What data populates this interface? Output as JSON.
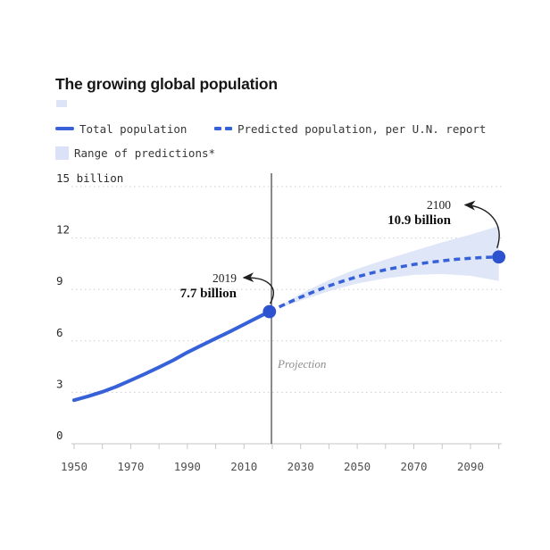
{
  "title": "The growing global population",
  "legend": {
    "total": "Total population",
    "predicted": "Predicted population, per U.N. report",
    "range": "Range of predictions*"
  },
  "colors": {
    "line": "#3761d8",
    "dot": "#2d52cf",
    "band": "#dce3f7",
    "grid": "#cdcdcd",
    "axis": "#c6c6c6",
    "projection_line": "#3c3c3c",
    "arrow": "#1f1f1f"
  },
  "chart_data": {
    "type": "line",
    "title": "The growing global population",
    "xlabel": "",
    "ylabel": "",
    "xlim": [
      1950,
      2100
    ],
    "ylim": [
      0,
      15
    ],
    "grid": "horizontal-dotted",
    "legend_position": "top",
    "y_tick_values": [
      0,
      3,
      6,
      9,
      12,
      15
    ],
    "y_tick_labels": [
      "0",
      "3",
      "6",
      "9",
      "12",
      "15 billion"
    ],
    "x_label_years": [
      1950,
      1970,
      1990,
      2010,
      2030,
      2050,
      2070,
      2090
    ],
    "x_minor_tick_step": 10,
    "projection_year": 2019.7,
    "series": [
      {
        "name": "Total population",
        "style": "solid",
        "x": [
          1950,
          1955,
          1960,
          1965,
          1970,
          1975,
          1980,
          1985,
          1990,
          1995,
          2000,
          2005,
          2010,
          2015,
          2019
        ],
        "y": [
          2.54,
          2.77,
          3.03,
          3.34,
          3.7,
          4.07,
          4.46,
          4.87,
          5.33,
          5.74,
          6.14,
          6.54,
          6.96,
          7.38,
          7.71
        ]
      },
      {
        "name": "Predicted population, per U.N. report",
        "style": "dashed",
        "x": [
          2019,
          2025,
          2030,
          2035,
          2040,
          2045,
          2050,
          2055,
          2060,
          2065,
          2070,
          2075,
          2080,
          2085,
          2090,
          2095,
          2100
        ],
        "y": [
          7.71,
          8.18,
          8.55,
          8.89,
          9.21,
          9.49,
          9.74,
          9.96,
          10.15,
          10.31,
          10.46,
          10.57,
          10.67,
          10.76,
          10.82,
          10.87,
          10.9
        ]
      }
    ],
    "band": {
      "name": "Range of predictions",
      "x": [
        2024,
        2030,
        2040,
        2050,
        2060,
        2070,
        2080,
        2090,
        2100
      ],
      "upper": [
        8.15,
        8.75,
        9.55,
        10.2,
        10.75,
        11.25,
        11.75,
        12.2,
        12.7
      ],
      "lower": [
        8.0,
        8.35,
        8.9,
        9.35,
        9.65,
        9.85,
        9.9,
        9.8,
        9.5
      ]
    },
    "points": [
      {
        "year": 2019,
        "value": 7.71
      },
      {
        "year": 2100,
        "value": 10.9
      }
    ],
    "annotations": {
      "current": {
        "year": "2019",
        "value": "7.7 billion"
      },
      "projected": {
        "year": "2100",
        "value": "10.9 billion"
      },
      "projection_label": "Projection"
    }
  }
}
